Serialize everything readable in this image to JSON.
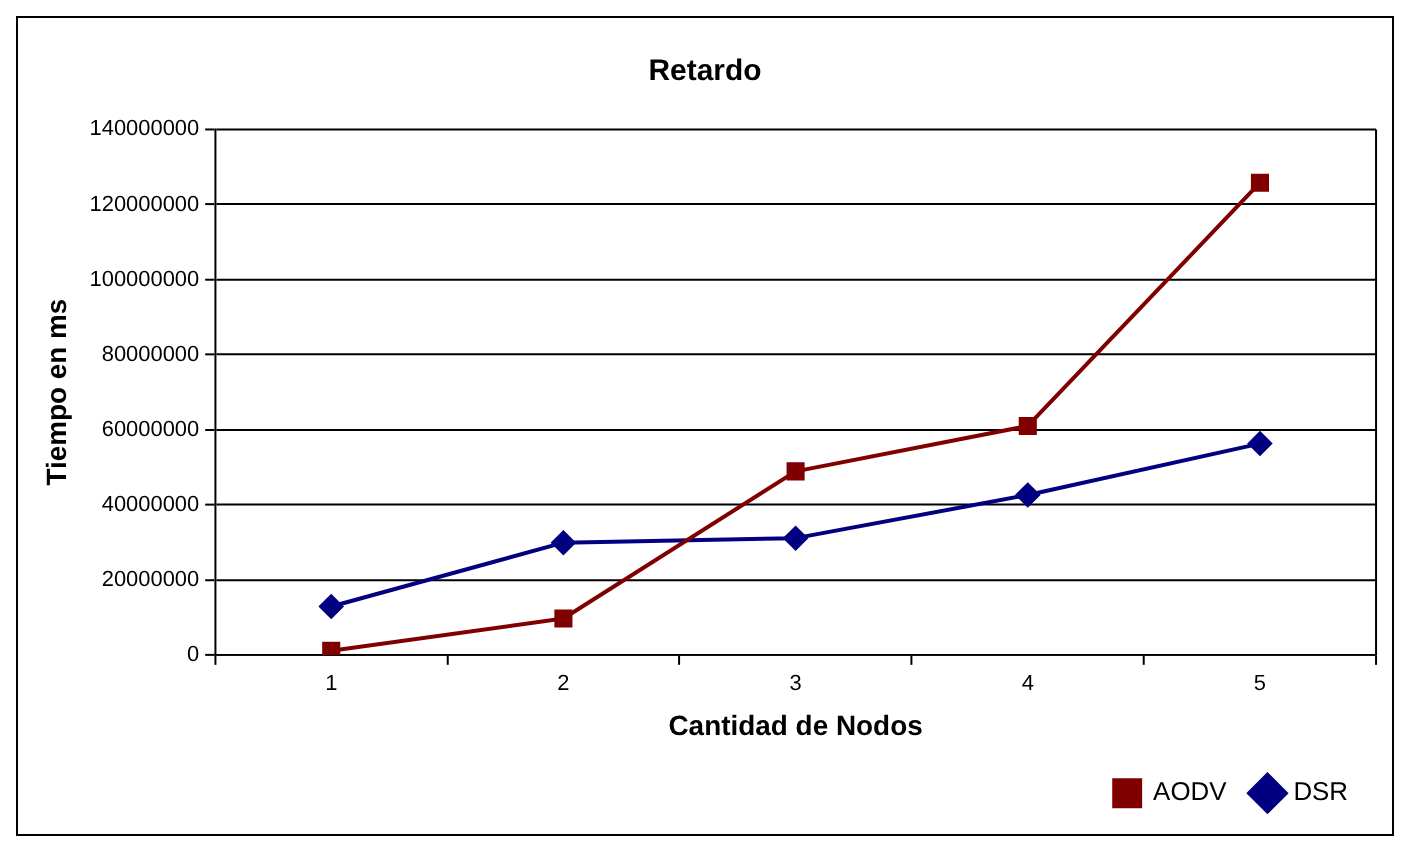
{
  "chart_data": {
    "type": "line",
    "title": "Retardo",
    "xlabel": "Cantidad de Nodos",
    "ylabel": "Tiempo en ms",
    "categories": [
      "1",
      "2",
      "3",
      "4",
      "5"
    ],
    "series": [
      {
        "name": "AODV",
        "color": "#800000",
        "marker": "square",
        "values": [
          1100000,
          9700000,
          48900000,
          61000000,
          125800000
        ]
      },
      {
        "name": "DSR",
        "color": "#000080",
        "marker": "diamond",
        "values": [
          12900000,
          29900000,
          31100000,
          42600000,
          56300000
        ]
      }
    ],
    "ylim": [
      0,
      140000000
    ],
    "yticks": [
      0,
      20000000,
      40000000,
      60000000,
      80000000,
      100000000,
      120000000,
      140000000
    ],
    "grid": "y",
    "legend": "bottom right",
    "line_style": "solid"
  }
}
